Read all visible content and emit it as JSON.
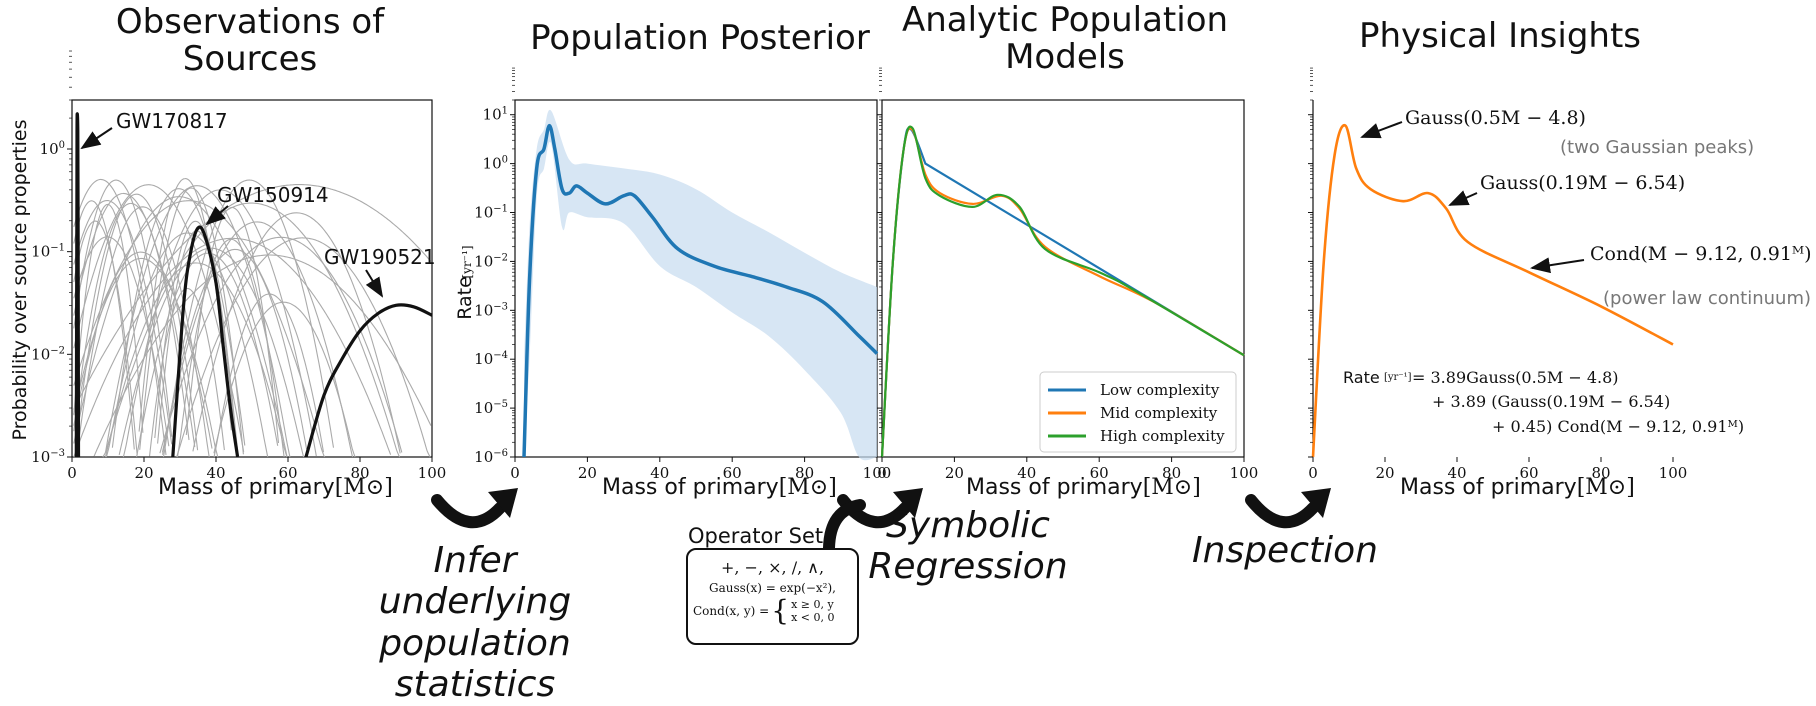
{
  "titles": {
    "observations": "Observations of\nSources",
    "posterior": "Population Posterior",
    "analytic": "Analytic Population\nModels",
    "insights": "Physical Insights"
  },
  "steps": {
    "infer": "Infer underlying\npopulation\nstatistics",
    "symbolic": "Symbolic\nRegression",
    "inspection": "Inspection"
  },
  "operator_set": {
    "title": "Operator Set",
    "line1": "+, −, ×, /, ∧,",
    "line2": "Gauss(x) = exp(−x²),",
    "line3_lhs": "Cond(x, y) =",
    "line3_case1": "x ≥ 0,   y",
    "line3_case2": "x < 0,   0"
  },
  "xlabel": "Mass of primary",
  "xlabel_unit": "[M⊙]",
  "panel1": {
    "ylabel": "Probability over source properties",
    "annotations": [
      "GW170817",
      "GW150914",
      "GW190521"
    ]
  },
  "panel2": {
    "ylabel": "Rate",
    "ylabel_unit": "[yr⁻¹]"
  },
  "panel3": {
    "legend": [
      {
        "label": "Low complexity",
        "color": "#1f77b4"
      },
      {
        "label": "Mid complexity",
        "color": "#ff7f0e"
      },
      {
        "label": "High complexity",
        "color": "#2ca02c"
      }
    ]
  },
  "panel4": {
    "ann1": "Gauss(0.5M − 4.8)",
    "ann1_note": "(two Gaussian peaks)",
    "ann2": "Gauss(0.19M − 6.54)",
    "ann3": "Cond(M − 9.12, 0.91ᴹ)",
    "ann3_note": "(power law continuum)",
    "eq_lhs": "Rate",
    "eq_unit": "[yr⁻¹]",
    "eq_line1": "= 3.89Gauss(0.5M − 4.8)",
    "eq_line2": "+ 3.89 (Gauss(0.19M − 6.54)",
    "eq_line3": "+ 0.45) Cond(M − 9.12, 0.91ᴹ)"
  },
  "chart_data": [
    {
      "type": "line",
      "title": "Observations of Sources",
      "xlabel": "Mass of primary [M⊙]",
      "ylabel": "Probability over source properties",
      "xlim": [
        0,
        100
      ],
      "ylim": [
        0.001,
        3
      ],
      "yscale": "log",
      "xticks": [
        "0",
        "20",
        "40",
        "60",
        "80",
        "100"
      ],
      "yticks": [
        "10^-3",
        "10^-2",
        "10^-1",
        "10^0"
      ],
      "series": [
        {
          "name": "GW170817",
          "x": [
            1.2,
            1.35,
            1.4,
            1.45,
            1.6,
            1.7,
            1.8
          ],
          "y": [
            0.001,
            0.3,
            1.5,
            2.2,
            1.5,
            0.2,
            0.001
          ]
        },
        {
          "name": "GW150914",
          "x": [
            28,
            31,
            33,
            35,
            37,
            40,
            42,
            44,
            46
          ],
          "y": [
            0.001,
            0.03,
            0.1,
            0.17,
            0.14,
            0.05,
            0.012,
            0.003,
            0.001
          ]
        },
        {
          "name": "GW190521",
          "x": [
            65,
            70,
            75,
            80,
            85,
            90,
            95,
            100
          ],
          "y": [
            0.001,
            0.004,
            0.009,
            0.017,
            0.025,
            0.03,
            0.029,
            0.024
          ]
        }
      ]
    },
    {
      "type": "line",
      "title": "Population Posterior",
      "xlabel": "Mass of primary [M⊙]",
      "ylabel": "Rate [yr⁻¹]",
      "xlim": [
        0,
        100
      ],
      "ylim": [
        1e-06,
        20
      ],
      "yscale": "log",
      "xticks": [
        "0",
        "20",
        "40",
        "60",
        "80",
        "100"
      ],
      "yticks": [
        "10^-6",
        "10^-5",
        "10^-4",
        "10^-3",
        "10^-2",
        "10^-1",
        "10^0",
        "10^1"
      ],
      "series": [
        {
          "name": "median",
          "x": [
            2.5,
            4,
            6,
            8,
            9.5,
            11,
            13,
            15,
            17,
            20,
            25,
            30,
            33,
            38,
            45,
            55,
            65,
            75,
            85,
            95,
            100
          ],
          "y": [
            1e-06,
            0.004,
            0.8,
            2.0,
            6.0,
            2.0,
            0.3,
            0.25,
            0.35,
            0.25,
            0.15,
            0.22,
            0.22,
            0.08,
            0.018,
            0.008,
            0.005,
            0.003,
            0.0015,
            0.0003,
            0.00013
          ]
        },
        {
          "name": "upper",
          "x": [
            2.5,
            4,
            6,
            8,
            10,
            15,
            20,
            30,
            40,
            50,
            60,
            70,
            80,
            90,
            100
          ],
          "y": [
            0.0001,
            0.05,
            2,
            5,
            12,
            1.2,
            1.0,
            0.8,
            0.6,
            0.3,
            0.1,
            0.04,
            0.015,
            0.006,
            0.003
          ]
        },
        {
          "name": "lower",
          "x": [
            2.5,
            4,
            6,
            8,
            10,
            13,
            15,
            20,
            30,
            40,
            50,
            60,
            70,
            80,
            90,
            95,
            100
          ],
          "y": [
            1e-06,
            0.0001,
            0.2,
            0.8,
            2.5,
            0.05,
            0.1,
            0.08,
            0.06,
            0.008,
            0.003,
            0.0009,
            0.0003,
            6e-05,
            8e-06,
            1e-06,
            1e-06
          ]
        }
      ]
    },
    {
      "type": "line",
      "title": "Analytic Population Models",
      "xlabel": "Mass of primary [M⊙]",
      "xlim": [
        0,
        100
      ],
      "ylim": [
        1e-06,
        20
      ],
      "yscale": "log",
      "xticks": [
        "0",
        "20",
        "40",
        "60",
        "80",
        "100"
      ],
      "legend_position": "bottom-right",
      "series": [
        {
          "name": "Low complexity",
          "color": "#1f77b4",
          "x": [
            0,
            3,
            6,
            8,
            12,
            100
          ],
          "y": [
            1e-06,
            0.01,
            2,
            5,
            1.0,
            0.00012
          ]
        },
        {
          "name": "Mid complexity",
          "color": "#ff7f0e",
          "x": [
            0,
            3,
            6,
            8.5,
            12,
            16,
            25,
            33,
            38,
            45,
            60,
            75,
            100
          ],
          "y": [
            1e-06,
            0.01,
            2,
            4.8,
            0.6,
            0.25,
            0.15,
            0.22,
            0.12,
            0.02,
            0.005,
            0.0015,
            0.00012
          ]
        },
        {
          "name": "High complexity",
          "color": "#2ca02c",
          "x": [
            0,
            3,
            6,
            8.5,
            12,
            16,
            25,
            32,
            38,
            45,
            60,
            70,
            100
          ],
          "y": [
            1e-06,
            0.01,
            2,
            5.2,
            0.5,
            0.22,
            0.13,
            0.23,
            0.13,
            0.018,
            0.006,
            0.0025,
            0.00012
          ]
        }
      ]
    },
    {
      "type": "line",
      "title": "Physical Insights",
      "xlabel": "Mass of primary [M⊙]",
      "xlim": [
        0,
        100
      ],
      "ylim": [
        1e-06,
        20
      ],
      "yscale": "log",
      "xticks": [
        "0",
        "20",
        "40",
        "60",
        "80",
        "100"
      ],
      "series": [
        {
          "name": "",
          "color": "#ff7f0e",
          "x": [
            0,
            3,
            6,
            9,
            12,
            16,
            25,
            32,
            37,
            43,
            60,
            80,
            100
          ],
          "y": [
            1e-06,
            0.01,
            1.5,
            6.0,
            0.8,
            0.3,
            0.17,
            0.25,
            0.12,
            0.025,
            0.006,
            0.0012,
            0.0002
          ]
        }
      ]
    }
  ]
}
